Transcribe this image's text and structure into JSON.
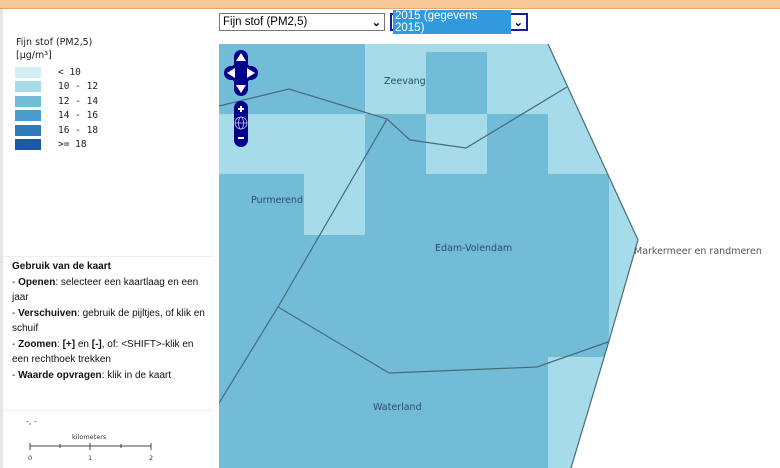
{
  "header": {
    "layer_select": {
      "value": "Fijn stof (PM2,5)"
    },
    "year_select": {
      "value": "2015 (gegevens 2015)"
    }
  },
  "legend": {
    "title": "Fijn stof (PM2,5)",
    "unit": "[µg/m³]",
    "items": [
      {
        "label": "< 10",
        "color": "#d4ecf4"
      },
      {
        "label": "10 - 12",
        "color": "#a6dcea"
      },
      {
        "label": "12 - 14",
        "color": "#72bcd8"
      },
      {
        "label": "14 - 16",
        "color": "#4a9ccc"
      },
      {
        "label": "16 - 18",
        "color": "#2e7cbc"
      },
      {
        "label": ">= 18",
        "color": "#1c58a8"
      }
    ]
  },
  "help": {
    "title": "Gebruik van de kaart",
    "open_label": "Openen",
    "open_text": ": selecteer een kaartlaag en een jaar",
    "pan_label": "Verschuiven",
    "pan_text": ": gebruik de pijltjes, of klik en schuif",
    "zoom_label": "Zoomen",
    "zoom_colon": ": ",
    "zoom_plus": "[+]",
    "zoom_en": " en ",
    "zoom_minus": "[-]",
    "zoom_text": ", of: <SHIFT>-klik en een rechthoek trekken",
    "query_label": "Waarde opvragen",
    "query_text": ": klik in de kaart"
  },
  "coords": "-, -",
  "scale": {
    "unit": "kilometers",
    "ticks": [
      "0",
      "1",
      "2"
    ]
  },
  "map": {
    "labels": {
      "zeevang": "Zeevang",
      "purmerend": "Purmerend",
      "edam": "Edam-Volendam",
      "waterland": "Waterland",
      "markermeer": "Markermeer en randmeren"
    },
    "nav_color": "#00008b"
  }
}
